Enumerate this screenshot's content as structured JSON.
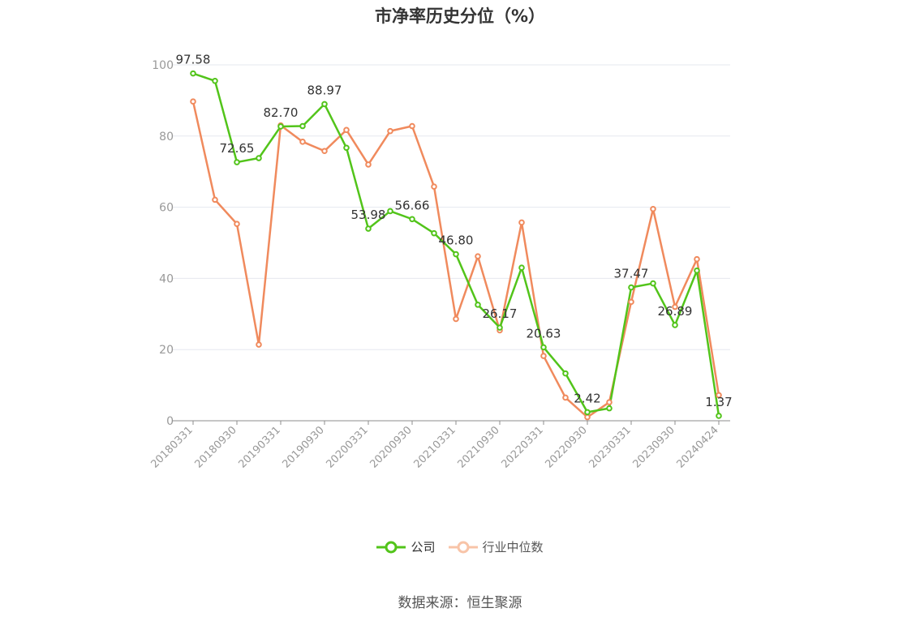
{
  "chart_data": {
    "type": "line",
    "title": "市净率历史分位（%）",
    "ylim": [
      0,
      100
    ],
    "yticks": [
      0,
      20,
      40,
      60,
      80,
      100
    ],
    "x": [
      "20180331",
      "20180630",
      "20180930",
      "20181231",
      "20190331",
      "20190630",
      "20190930",
      "20191231",
      "20200331",
      "20200630",
      "20200930",
      "20201231",
      "20210331",
      "20210630",
      "20210930",
      "20211231",
      "20220331",
      "20220630",
      "20220930",
      "20221231",
      "20230331",
      "20230630",
      "20230930",
      "20231231",
      "20240424"
    ],
    "x_tick_labels": [
      "20180331",
      "20180930",
      "20190331",
      "20190930",
      "20200331",
      "20200930",
      "20210331",
      "20210930",
      "20220331",
      "20220930",
      "20230331",
      "20230930",
      "20240424"
    ],
    "grid": true,
    "legend_position": "bottom",
    "series": [
      {
        "name": "公司",
        "color": "#52c41a",
        "values": [
          97.58,
          95.5,
          72.65,
          73.8,
          82.7,
          82.8,
          88.97,
          76.7,
          53.98,
          58.9,
          56.66,
          52.7,
          46.8,
          32.6,
          26.17,
          43.0,
          20.63,
          13.3,
          2.42,
          3.5,
          37.47,
          38.6,
          26.89,
          42.2,
          1.37
        ]
      },
      {
        "name": "行业中位数",
        "color": "#f08a5d",
        "values": [
          89.7,
          62.1,
          55.3,
          21.4,
          83.0,
          78.4,
          75.8,
          81.7,
          72.0,
          81.4,
          82.8,
          65.8,
          28.6,
          46.2,
          25.4,
          55.7,
          18.2,
          6.5,
          1.0,
          5.2,
          33.4,
          59.5,
          32.0,
          45.4,
          7.2
        ]
      }
    ],
    "data_labels": [
      {
        "index": 0,
        "text": "97.58"
      },
      {
        "index": 2,
        "text": "72.65"
      },
      {
        "index": 4,
        "text": "82.70"
      },
      {
        "index": 6,
        "text": "88.97"
      },
      {
        "index": 8,
        "text": "53.98"
      },
      {
        "index": 10,
        "text": "56.66"
      },
      {
        "index": 12,
        "text": "46.80"
      },
      {
        "index": 14,
        "text": "26.17"
      },
      {
        "index": 16,
        "text": "20.63"
      },
      {
        "index": 18,
        "text": "2.42"
      },
      {
        "index": 20,
        "text": "37.47"
      },
      {
        "index": 22,
        "text": "26.89"
      },
      {
        "index": 24,
        "text": "1.37"
      }
    ]
  },
  "source": "数据来源：恒生聚源"
}
